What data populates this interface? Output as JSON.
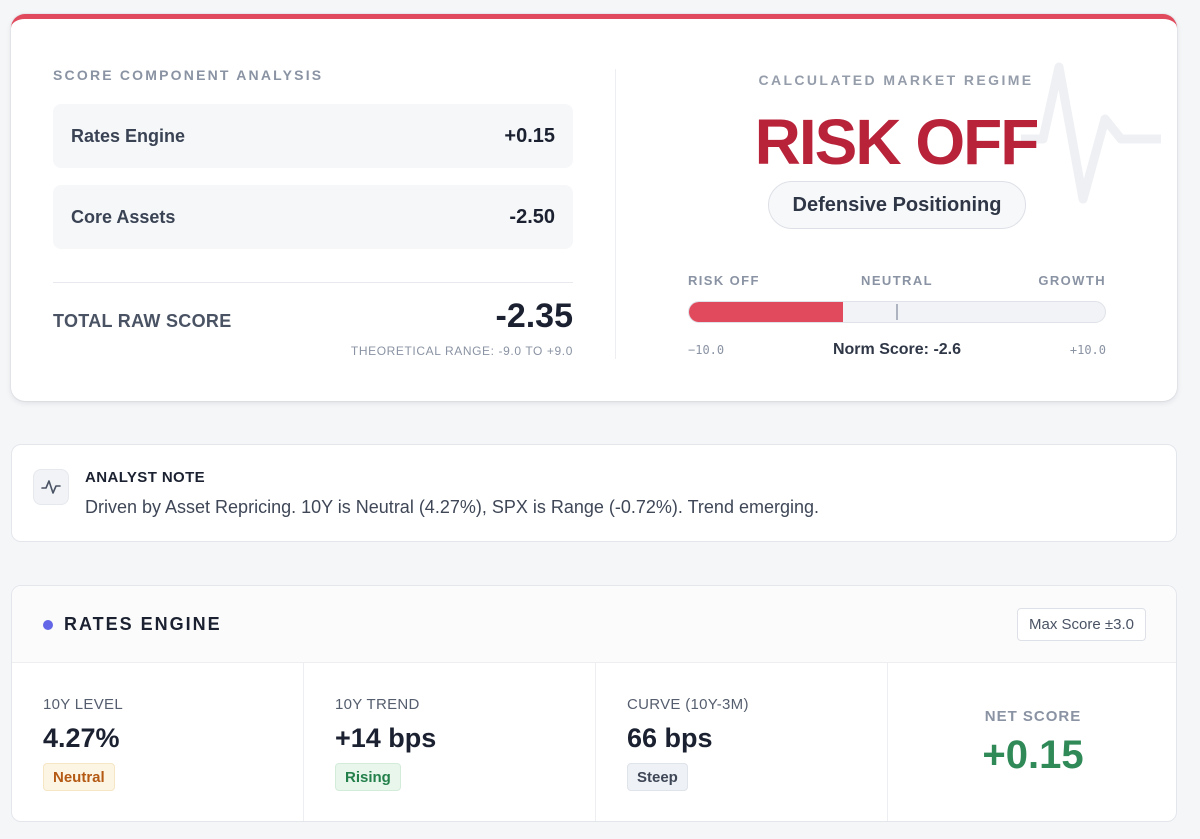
{
  "score_panel": {
    "section_title": "SCORE COMPONENT ANALYSIS",
    "components": [
      {
        "name": "Rates Engine",
        "value": "+0.15"
      },
      {
        "name": "Core Assets",
        "value": "-2.50"
      }
    ],
    "total_label": "TOTAL RAW SCORE",
    "total_value": "-2.35",
    "range_note": "THEORETICAL RANGE: -9.0 TO +9.0"
  },
  "regime": {
    "label": "CALCULATED MARKET REGIME",
    "value": "RISK OFF",
    "positioning": "Defensive Positioning",
    "gauge": {
      "left_label": "RISK OFF",
      "mid_label": "NEUTRAL",
      "right_label": "GROWTH",
      "min_text": "−10.0",
      "max_text": "+10.0",
      "min": -10,
      "max": 10,
      "fill_fraction": 0.37,
      "norm_text": "Norm Score: -2.6"
    },
    "colors": {
      "accent": "#e04a5c",
      "regime_text": "#b8233a"
    }
  },
  "analyst_note": {
    "icon": "pulse-icon",
    "title": "ANALYST NOTE",
    "text": "Driven by Asset Repricing. 10Y is Neutral (4.27%), SPX is Range (-0.72%). Trend emerging."
  },
  "rates_engine": {
    "title": "RATES ENGINE",
    "max_score": "Max Score ±3.0",
    "metrics": [
      {
        "label": "10Y LEVEL",
        "value": "4.27%",
        "badge": "Neutral"
      },
      {
        "label": "10Y TREND",
        "value": "+14 bps",
        "badge": "Rising"
      },
      {
        "label": "CURVE (10Y-3M)",
        "value": "66 bps",
        "badge": "Steep"
      }
    ],
    "net_score_label": "NET SCORE",
    "net_score_value": "+0.15",
    "colors": {
      "dot": "#6366e6",
      "net_score": "#2f8a57"
    }
  }
}
